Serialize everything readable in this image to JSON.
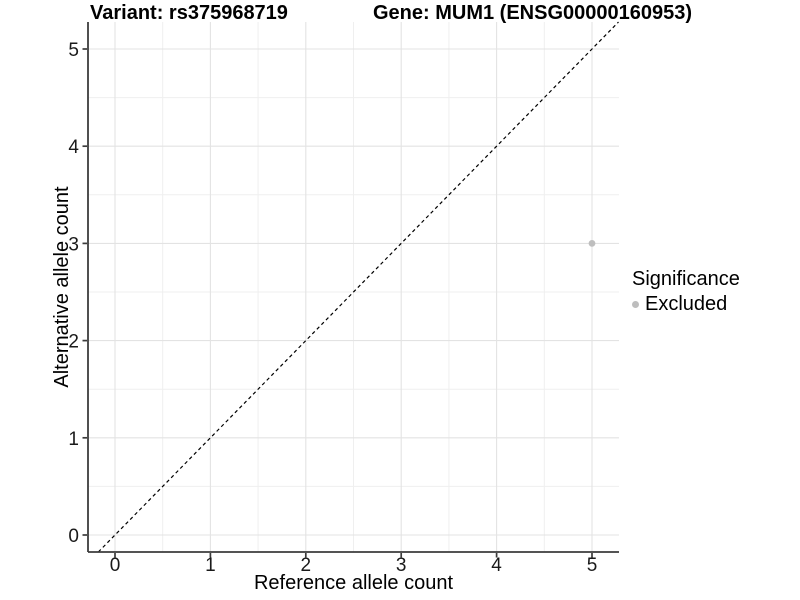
{
  "chart_data": {
    "type": "scatter",
    "title_left": "Variant: rs375968719",
    "title_right": "Gene: MUM1 (ENSG00000160953)",
    "xlabel": "Reference allele count",
    "ylabel": "Alternative allele count",
    "x_ticks": [
      "0",
      "1",
      "2",
      "3",
      "4",
      "5"
    ],
    "y_ticks": [
      "0",
      "1",
      "2",
      "3",
      "4",
      "5"
    ],
    "xlim": [
      -0.28,
      5.28
    ],
    "ylim": [
      -0.18,
      5.28
    ],
    "grid": {
      "major": true,
      "minor": true,
      "minor_step": 0.5
    },
    "identity_line": {
      "show": true,
      "style": "dashed",
      "slope": 1,
      "intercept": 0,
      "color": "#000000"
    },
    "series": [
      {
        "name": "Excluded",
        "color": "#bebebe",
        "points": [
          {
            "x": 5,
            "y": 3
          }
        ]
      }
    ],
    "legend": {
      "title": "Significance",
      "position": "right",
      "items": [
        {
          "label": "Excluded",
          "color": "#bebebe",
          "marker": "circle"
        }
      ]
    },
    "colors": {
      "background": "#ffffff",
      "major_grid": "#e3e3e3",
      "minor_grid": "#efefef",
      "axis_line": "#3c3c3c",
      "tick_text": "#1a1a1a",
      "title_text": "#000000"
    }
  }
}
